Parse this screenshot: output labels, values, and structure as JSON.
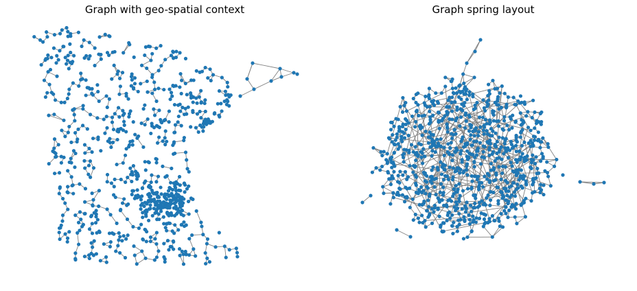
{
  "figure": {
    "background": "#ffffff"
  },
  "panels": [
    {
      "title": "Graph with geo-spatial context",
      "layout_kind": "geo-spatial",
      "node_color": "#1f77b4",
      "edge_color": "#808080"
    },
    {
      "title": "Graph spring layout",
      "layout_kind": "spring",
      "node_color": "#1f77b4",
      "edge_color": "#808080"
    }
  ]
}
